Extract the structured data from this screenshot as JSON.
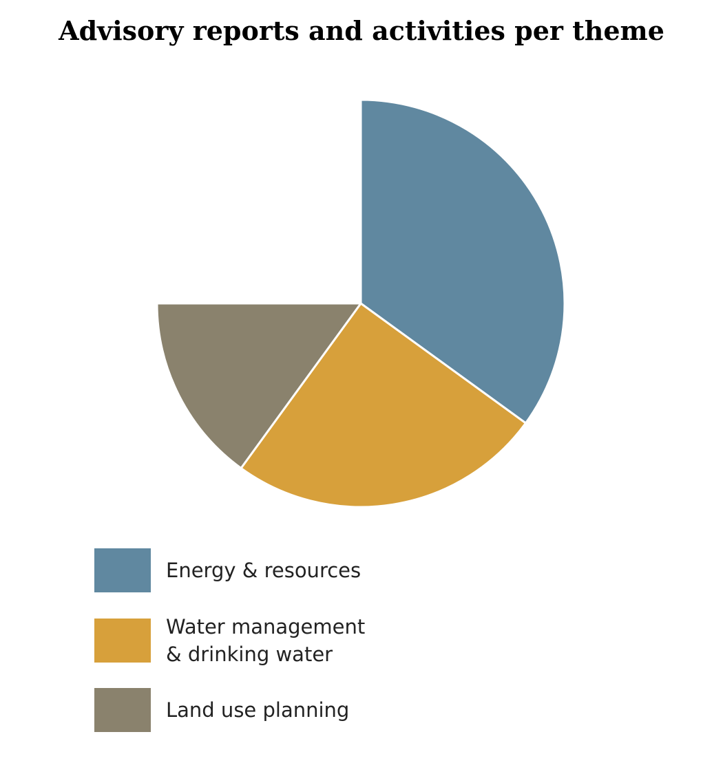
{
  "chart_data": {
    "type": "pie",
    "title": "Advisory reports and activities per theme",
    "legend_position": "bottom-left",
    "series": [
      {
        "name": "Energy & resources",
        "value": 35,
        "color": "#6088a0"
      },
      {
        "name": "Water management\n& drinking water",
        "value": 25,
        "color": "#d7a03b"
      },
      {
        "name": "Land use planning",
        "value": 15,
        "color": "#8a826d"
      }
    ]
  }
}
